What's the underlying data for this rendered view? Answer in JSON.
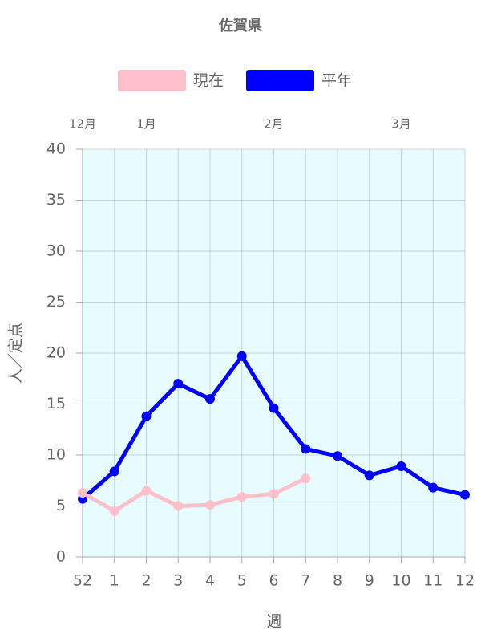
{
  "chart_data": {
    "type": "line",
    "title": "佐賀県",
    "categories": [
      "52",
      "1",
      "2",
      "3",
      "4",
      "5",
      "6",
      "7",
      "8",
      "9",
      "10",
      "11",
      "12"
    ],
    "x2_categories": [
      "12月",
      null,
      "1月",
      null,
      null,
      null,
      "2月",
      null,
      null,
      null,
      "3月",
      null,
      null
    ],
    "x_label": "週",
    "y_label": "人／定点",
    "series": [
      {
        "name": "現在",
        "color": "#ffc0cb",
        "values": [
          6.3,
          4.5,
          6.5,
          5.0,
          5.1,
          5.9,
          6.2,
          7.7,
          null,
          null,
          null,
          null,
          null
        ]
      },
      {
        "name": "平年",
        "color": "#0000ff",
        "values": [
          5.7,
          8.4,
          13.8,
          17.0,
          15.5,
          19.7,
          14.6,
          10.6,
          9.9,
          8.0,
          8.9,
          6.8,
          6.1
        ]
      }
    ],
    "ylim": [
      0,
      40
    ],
    "yticks": [
      0,
      5,
      10,
      15,
      20,
      25,
      30,
      35,
      40
    ],
    "grid": true,
    "plot_background": "#e6fcfe",
    "legend": "top"
  }
}
